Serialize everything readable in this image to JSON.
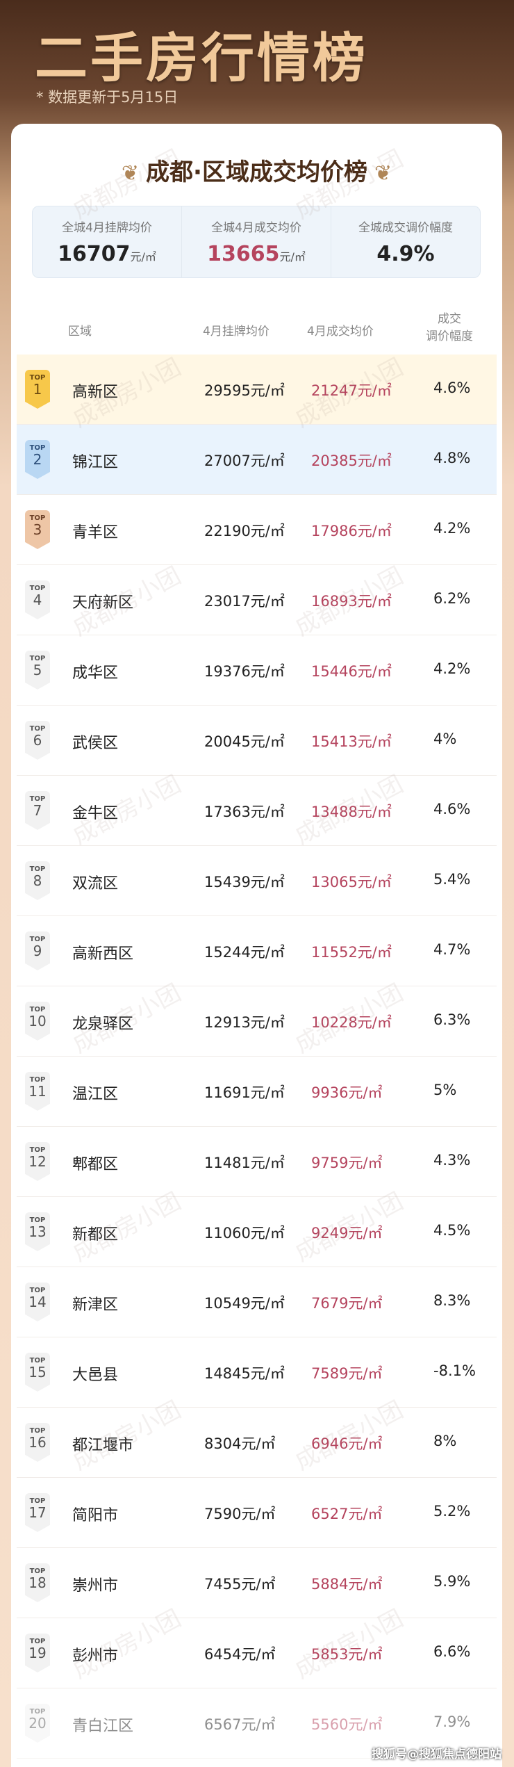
{
  "header": {
    "title": "二手房行情榜",
    "subtitle": "* 数据更新于5月15日"
  },
  "card": {
    "heading": "成都·区域成交均价榜",
    "watermark": "成都房小团"
  },
  "summary": [
    {
      "label": "全城4月挂牌均价",
      "value": "16707",
      "unit": "元/㎡"
    },
    {
      "label": "全城4月成交均价",
      "value": "13665",
      "unit": "元/㎡"
    },
    {
      "label": "全城成交调价幅度",
      "value": "4.9%",
      "unit": ""
    }
  ],
  "columns": {
    "region": "区域",
    "listing": "4月挂牌均价",
    "deal": "4月成交均价",
    "change": "成交\n调价幅度"
  },
  "badge_prefix": "TOP",
  "rows": [
    {
      "rank": "1",
      "name": "高新区",
      "listing": "29595元/㎡",
      "deal": "21247元/㎡",
      "change": "4.6%"
    },
    {
      "rank": "2",
      "name": "锦江区",
      "listing": "27007元/㎡",
      "deal": "20385元/㎡",
      "change": "4.8%"
    },
    {
      "rank": "3",
      "name": "青羊区",
      "listing": "22190元/㎡",
      "deal": "17986元/㎡",
      "change": "4.2%"
    },
    {
      "rank": "4",
      "name": "天府新区",
      "listing": "23017元/㎡",
      "deal": "16893元/㎡",
      "change": "6.2%"
    },
    {
      "rank": "5",
      "name": "成华区",
      "listing": "19376元/㎡",
      "deal": "15446元/㎡",
      "change": "4.2%"
    },
    {
      "rank": "6",
      "name": "武侯区",
      "listing": "20045元/㎡",
      "deal": "15413元/㎡",
      "change": "4%"
    },
    {
      "rank": "7",
      "name": "金牛区",
      "listing": "17363元/㎡",
      "deal": "13488元/㎡",
      "change": "4.6%"
    },
    {
      "rank": "8",
      "name": "双流区",
      "listing": "15439元/㎡",
      "deal": "13065元/㎡",
      "change": "5.4%"
    },
    {
      "rank": "9",
      "name": "高新西区",
      "listing": "15244元/㎡",
      "deal": "11552元/㎡",
      "change": "4.7%"
    },
    {
      "rank": "10",
      "name": "龙泉驿区",
      "listing": "12913元/㎡",
      "deal": "10228元/㎡",
      "change": "6.3%"
    },
    {
      "rank": "11",
      "name": "温江区",
      "listing": "11691元/㎡",
      "deal": "9936元/㎡",
      "change": "5%"
    },
    {
      "rank": "12",
      "name": "郫都区",
      "listing": "11481元/㎡",
      "deal": "9759元/㎡",
      "change": "4.3%"
    },
    {
      "rank": "13",
      "name": "新都区",
      "listing": "11060元/㎡",
      "deal": "9249元/㎡",
      "change": "4.5%"
    },
    {
      "rank": "14",
      "name": "新津区",
      "listing": "10549元/㎡",
      "deal": "7679元/㎡",
      "change": "8.3%"
    },
    {
      "rank": "15",
      "name": "大邑县",
      "listing": "14845元/㎡",
      "deal": "7589元/㎡",
      "change": "-8.1%"
    },
    {
      "rank": "16",
      "name": "都江堰市",
      "listing": "8304元/㎡",
      "deal": "6946元/㎡",
      "change": "8%"
    },
    {
      "rank": "17",
      "name": "简阳市",
      "listing": "7590元/㎡",
      "deal": "6527元/㎡",
      "change": "5.2%"
    },
    {
      "rank": "18",
      "name": "崇州市",
      "listing": "7455元/㎡",
      "deal": "5884元/㎡",
      "change": "5.9%"
    },
    {
      "rank": "19",
      "name": "彭州市",
      "listing": "6454元/㎡",
      "deal": "5853元/㎡",
      "change": "6.6%"
    },
    {
      "rank": "20",
      "name": "青白江区",
      "listing": "6567元/㎡",
      "deal": "5560元/㎡",
      "change": "7.9%"
    }
  ],
  "footer": "搜狐号@搜狐焦点德阳站",
  "colors": {
    "deal_price": "#b5445e",
    "top1": "#f7c84a",
    "top2": "#b9d7f3",
    "top3": "#eec6a6"
  }
}
